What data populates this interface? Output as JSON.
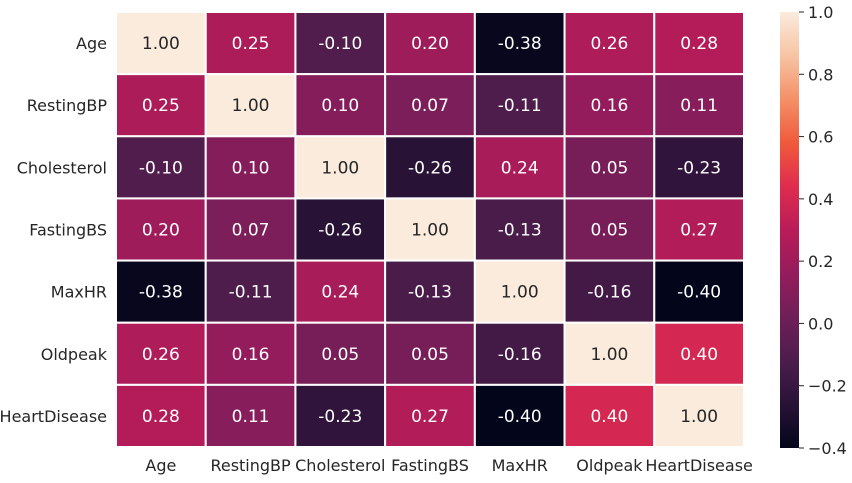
{
  "chart_data": {
    "type": "heatmap",
    "title": "",
    "xlabel": "",
    "ylabel": "",
    "row_labels": [
      "Age",
      "RestingBP",
      "Cholesterol",
      "FastingBS",
      "MaxHR",
      "Oldpeak",
      "HeartDisease"
    ],
    "col_labels": [
      "Age",
      "RestingBP",
      "Cholesterol",
      "FastingBS",
      "MaxHR",
      "Oldpeak",
      "HeartDisease"
    ],
    "values": [
      [
        1.0,
        0.25,
        -0.1,
        0.2,
        -0.38,
        0.26,
        0.28
      ],
      [
        0.25,
        1.0,
        0.1,
        0.07,
        -0.11,
        0.16,
        0.11
      ],
      [
        -0.1,
        0.1,
        1.0,
        -0.26,
        0.24,
        0.05,
        -0.23
      ],
      [
        0.2,
        0.07,
        -0.26,
        1.0,
        -0.13,
        0.05,
        0.27
      ],
      [
        -0.38,
        -0.11,
        0.24,
        -0.13,
        1.0,
        -0.16,
        -0.4
      ],
      [
        0.26,
        0.16,
        0.05,
        0.05,
        -0.16,
        1.0,
        0.4
      ],
      [
        0.28,
        0.11,
        -0.23,
        0.27,
        -0.4,
        0.4,
        1.0
      ]
    ],
    "value_format": "0.00",
    "colorbar": {
      "vmin": -0.4,
      "vmax": 1.0,
      "ticks": [
        -0.4,
        -0.2,
        0.0,
        0.2,
        0.4,
        0.6,
        0.8,
        1.0
      ],
      "tick_labels": [
        "−0.4",
        "−0.2",
        "0.0",
        "0.2",
        "0.4",
        "0.6",
        "0.8",
        "1.0"
      ],
      "colormap": "rocket",
      "placement": "right"
    },
    "annotated": true,
    "cell_separator_color": "#ffffff"
  }
}
